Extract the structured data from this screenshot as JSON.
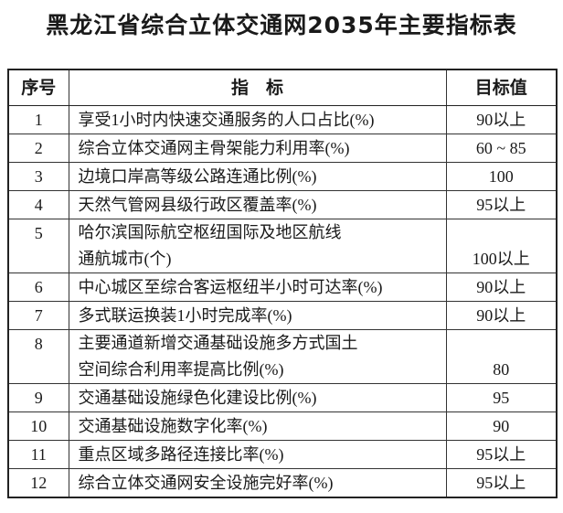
{
  "title": "黑龙江省综合立体交通网2035年主要指标表",
  "table": {
    "header": [
      "序号",
      "指　标",
      "目标值"
    ],
    "rows": [
      [
        "1",
        "享受1小时内快速交通服务的人口占比(%)",
        "90以上"
      ],
      [
        "2",
        "综合立体交通网主骨架能力利用率(%)",
        "60 ~ 85"
      ],
      [
        "3",
        "边境口岸高等级公路连通比例(%)",
        "100"
      ],
      [
        "4",
        "天然气管网县级行政区覆盖率(%)",
        "95以上"
      ],
      [
        "5",
        "哈尔滨国际航空枢纽国际及地区航线\n通航城市(个)",
        "100以上"
      ],
      [
        "6",
        "中心城区至综合客运枢纽半小时可达率(%)",
        "90以上"
      ],
      [
        "7",
        "多式联运换装1小时完成率(%)",
        "90以上"
      ],
      [
        "8",
        "主要通道新增交通基础设施多方式国土\n空间综合利用率提高比例(%)",
        "80"
      ],
      [
        "9",
        "交通基础设施绿色化建设比例(%)",
        "95"
      ],
      [
        "10",
        "交通基础设施数字化率(%)",
        "90"
      ],
      [
        "11",
        "重点区域多路径连接比率(%)",
        "95以上"
      ],
      [
        "12",
        "综合立体交通网安全设施完好率(%)",
        "95以上"
      ]
    ]
  }
}
